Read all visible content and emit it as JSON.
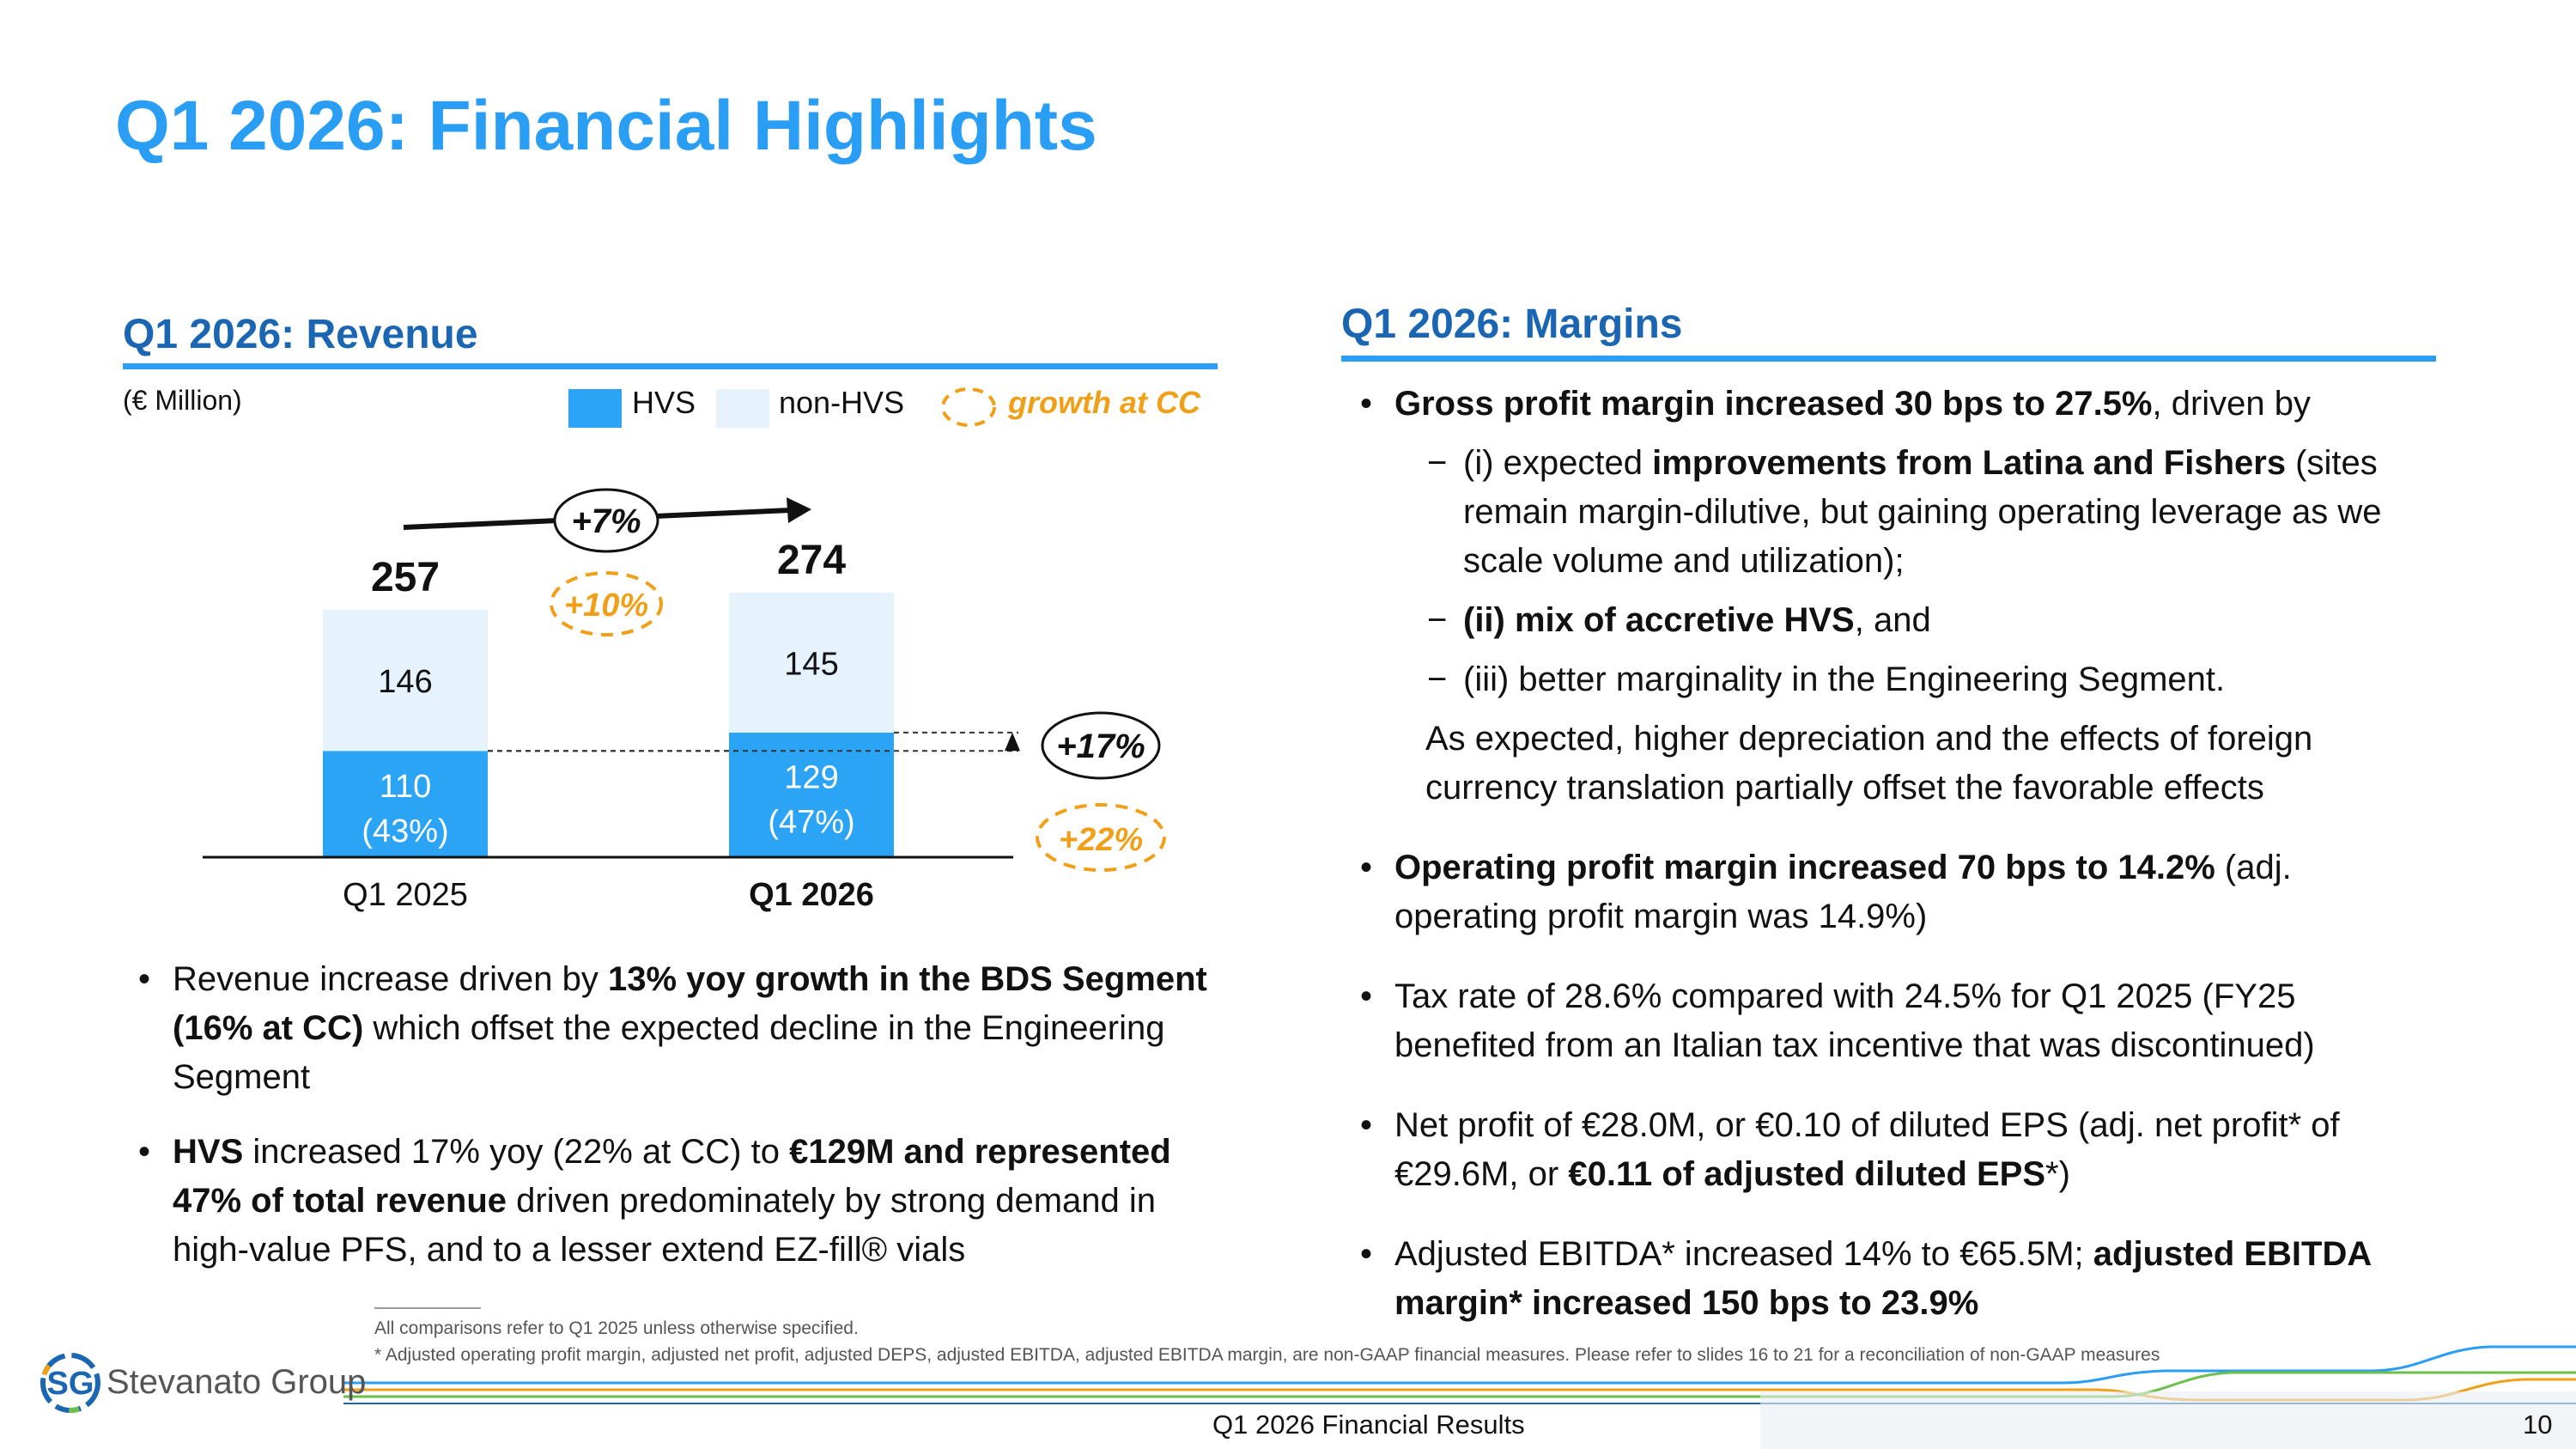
{
  "title": "Q1 2026: Financial Highlights",
  "revenue": {
    "heading": "Q1 2026: Revenue",
    "unit": "(€ Million)",
    "legend": [
      {
        "label": "HVS",
        "color": "#2ca4f6"
      },
      {
        "label": "non-HVS",
        "color": "#e6f3fd"
      },
      {
        "label": "growth at CC",
        "color": "#f0a018"
      }
    ],
    "chart_data": {
      "type": "bar",
      "stacked": true,
      "categories": [
        "Q1 2025",
        "Q1 2026"
      ],
      "series": [
        {
          "name": "HVS",
          "values": [
            110,
            129
          ],
          "labels": [
            "110\n(43%)",
            "129\n(47%)"
          ],
          "color": "#2ca4f6"
        },
        {
          "name": "non-HVS",
          "values": [
            146,
            145
          ],
          "labels": [
            "146",
            "145"
          ],
          "color": "#e6f3fd"
        }
      ],
      "totals": [
        "257",
        "274"
      ],
      "annotations": {
        "total_growth": "+7%",
        "total_growth_cc": "+10%",
        "hvs_growth": "+17%",
        "hvs_growth_cc": "+22%"
      },
      "ylim": [
        0,
        300
      ]
    },
    "bullets": [
      [
        {
          "t": "Revenue increase driven by ",
          "b": false
        },
        {
          "t": "13% yoy growth in the BDS Segment (16% at CC)",
          "b": true
        },
        {
          "t": " which offset the expected decline in the Engineering Segment",
          "b": false
        }
      ],
      [
        {
          "t": "HVS",
          "b": true
        },
        {
          "t": " increased 17% yoy (22% at CC) to ",
          "b": false
        },
        {
          "t": "€129M and represented 47% of total revenue",
          "b": true
        },
        {
          "t": " driven predominately by strong demand in high-value PFS, and to a lesser extend EZ-fill® vials",
          "b": false
        }
      ]
    ]
  },
  "margins": {
    "heading": "Q1 2026: Margins",
    "bullet1": [
      {
        "t": "Gross profit margin increased 30 bps to 27.5%",
        "b": true
      },
      {
        "t": ", driven by",
        "b": false
      }
    ],
    "subs": [
      [
        {
          "t": "(i) expected ",
          "b": false
        },
        {
          "t": "improvements from Latina and Fishers",
          "b": true
        },
        {
          "t": " (sites remain margin-dilutive, but gaining operating leverage as we scale volume and utilization);",
          "b": false
        }
      ],
      [
        {
          "t": "(ii) mix of accretive HVS",
          "b": true
        },
        {
          "t": ", and",
          "b": false
        }
      ],
      [
        {
          "t": "(iii) better marginality in the Engineering Segment.",
          "b": false
        }
      ]
    ],
    "note": "As expected, higher depreciation and the effects of foreign currency translation partially offset the favorable effects",
    "bullets": [
      [
        {
          "t": "Operating profit margin increased 70 bps to 14.2%",
          "b": true
        },
        {
          "t": " (adj. operating profit margin was 14.9%)",
          "b": false
        }
      ],
      [
        {
          "t": "Tax rate of 28.6% compared with 24.5% for Q1 2025 (FY25 benefited from an Italian tax incentive that was discontinued)",
          "b": false
        }
      ],
      [
        {
          "t": "Net profit of €28.0M, or €0.10 of diluted EPS (adj. net profit* of €29.6M, or ",
          "b": false
        },
        {
          "t": "€0.11 of adjusted diluted EPS",
          "b": true
        },
        {
          "t": "*)",
          "b": false
        }
      ],
      [
        {
          "t": "Adjusted EBITDA* increased 14% to €65.5M; ",
          "b": false
        },
        {
          "t": "adjusted EBITDA margin* increased 150 bps to 23.9%",
          "b": true
        }
      ]
    ]
  },
  "footnotes": [
    "All comparisons refer to Q1 2025 unless otherwise specified.",
    "* Adjusted operating profit margin, adjusted net profit, adjusted DEPS, adjusted EBITDA, adjusted EBITDA margin, are non-GAAP financial measures. Please refer to slides 16 to 21 for a reconciliation of non-GAAP measures"
  ],
  "logo": {
    "mark": "SG",
    "name": "Stevanato Group"
  },
  "footer": {
    "center": "Q1 2026 Financial Results",
    "page": "10"
  },
  "colors": {
    "accent": "#2a9df4",
    "heading": "#1a66b3",
    "cc_orange": "#f0a018"
  }
}
